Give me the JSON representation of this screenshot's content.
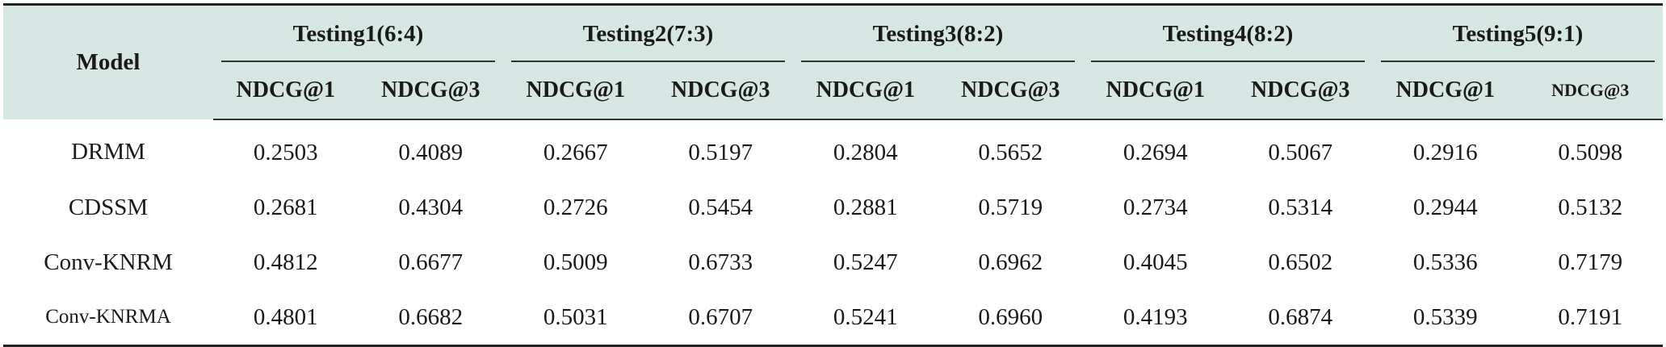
{
  "table": {
    "model_header": "Model",
    "groups": [
      {
        "label": "Testing1(6:4)",
        "sub": [
          "NDCG@1",
          "NDCG@3"
        ]
      },
      {
        "label": "Testing2(7:3)",
        "sub": [
          "NDCG@1",
          "NDCG@3"
        ]
      },
      {
        "label": "Testing3(8:2)",
        "sub": [
          "NDCG@1",
          "NDCG@3"
        ]
      },
      {
        "label": "Testing4(8:2)",
        "sub": [
          "NDCG@1",
          "NDCG@3"
        ]
      },
      {
        "label": "Testing5(9:1)",
        "sub": [
          "NDCG@1",
          "NDCG@3"
        ]
      }
    ],
    "rows": [
      {
        "model": "DRMM",
        "values": [
          "0.2503",
          "0.4089",
          "0.2667",
          "0.5197",
          "0.2804",
          "0.5652",
          "0.2694",
          "0.5067",
          "0.2916",
          "0.5098"
        ]
      },
      {
        "model": "CDSSM",
        "values": [
          "0.2681",
          "0.4304",
          "0.2726",
          "0.5454",
          "0.2881",
          "0.5719",
          "0.2734",
          "0.5314",
          "0.2944",
          "0.5132"
        ]
      },
      {
        "model": "Conv-KNRM",
        "values": [
          "0.4812",
          "0.6677",
          "0.5009",
          "0.6733",
          "0.5247",
          "0.6962",
          "0.4045",
          "0.6502",
          "0.5336",
          "0.7179"
        ]
      },
      {
        "model": "Conv-KNRMA",
        "values": [
          "0.4801",
          "0.6682",
          "0.5031",
          "0.6707",
          "0.5241",
          "0.6960",
          "0.4193",
          "0.6874",
          "0.5339",
          "0.7191"
        ]
      }
    ]
  },
  "colors": {
    "header_background": "#d6e6e3",
    "rule": "#222222"
  }
}
